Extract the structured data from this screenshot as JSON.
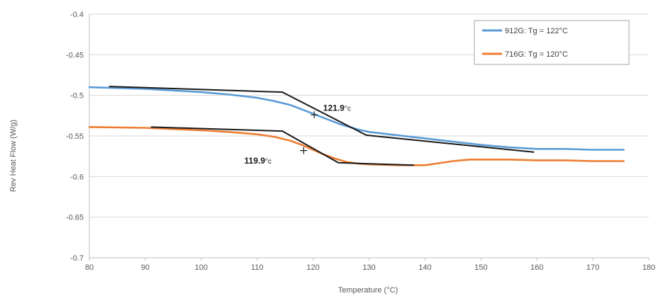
{
  "chart_data": {
    "type": "line",
    "xlabel": "Temperature (°C)",
    "ylabel": "Rev Heat Flow (W/g)",
    "xlim": [
      80,
      180
    ],
    "ylim": [
      -0.7,
      -0.4
    ],
    "xticks": [
      80,
      90,
      100,
      110,
      120,
      130,
      140,
      150,
      160,
      170,
      180
    ],
    "yticks": [
      -0.4,
      -0.45,
      -0.5,
      -0.55,
      -0.6,
      -0.65,
      -0.7
    ],
    "ytick_labels": [
      "-0.4",
      "-0.45",
      "-0.5",
      "-0.55",
      "-0.6",
      "-0.65",
      "-0.7"
    ],
    "grid": "horizontal",
    "legend_position": "top-right",
    "series": [
      {
        "name": "912G: Tg = 122°C",
        "color": "#5b9bd5",
        "x": [
          80,
          90,
          100,
          105,
          110,
          113,
          116,
          119,
          122,
          125,
          128,
          130,
          135,
          140,
          145,
          150,
          155,
          160,
          165,
          170,
          175.5
        ],
        "y": [
          -0.49,
          -0.492,
          -0.496,
          -0.499,
          -0.503,
          -0.507,
          -0.512,
          -0.52,
          -0.528,
          -0.536,
          -0.542,
          -0.545,
          -0.549,
          -0.553,
          -0.557,
          -0.561,
          -0.564,
          -0.566,
          -0.566,
          -0.567,
          -0.567
        ]
      },
      {
        "name": "716G: Tg = 120°C",
        "color": "#ed7d31",
        "x": [
          80,
          90,
          100,
          105,
          110,
          113,
          116,
          118,
          120,
          122,
          124,
          126,
          128,
          130,
          135,
          140,
          142,
          145,
          148,
          155,
          160,
          165,
          170,
          175.5
        ],
        "y": [
          -0.539,
          -0.54,
          -0.543,
          -0.545,
          -0.548,
          -0.551,
          -0.556,
          -0.561,
          -0.567,
          -0.573,
          -0.578,
          -0.582,
          -0.584,
          -0.585,
          -0.586,
          -0.586,
          -0.584,
          -0.581,
          -0.579,
          -0.579,
          -0.58,
          -0.58,
          -0.581,
          -0.581
        ]
      }
    ],
    "tangent_lines": [
      {
        "x": [
          83.5,
          114.5,
          129.5,
          159.5
        ],
        "y": [
          -0.489,
          -0.496,
          -0.549,
          -0.57
        ]
      },
      {
        "x": [
          91,
          114.5,
          124.5,
          138
        ],
        "y": [
          -0.539,
          -0.544,
          -0.583,
          -0.586
        ]
      }
    ],
    "markers": [
      {
        "x": 120.2,
        "y": -0.524
      },
      {
        "x": 118.3,
        "y": -0.568
      }
    ],
    "annotations": [
      {
        "text": "121.9",
        "unit": "°c",
        "x": 121.8,
        "y": -0.519
      },
      {
        "text": "119.9",
        "unit": "°c",
        "x": 107.7,
        "y": -0.584
      }
    ]
  }
}
